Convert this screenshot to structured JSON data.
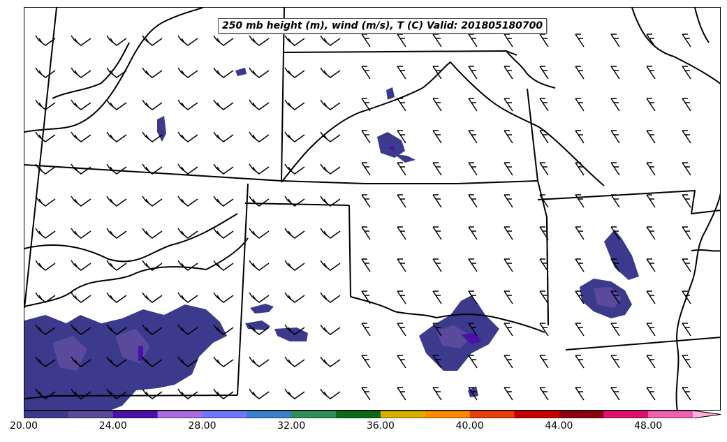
{
  "map": {
    "title": "250 mb height (m), wind (m/s), T (C) Valid: 201805180700"
  },
  "colorbar": {
    "colors": [
      "#3b3a8c",
      "#5a4a9c",
      "#4b10a8",
      "#a86be0",
      "#6e78ff",
      "#3a7fcc",
      "#2e8f5a",
      "#0d6a18",
      "#d8b000",
      "#ff8a00",
      "#e8400a",
      "#c40000",
      "#8c0010",
      "#e01070",
      "#f060b0",
      "#ffb0d8"
    ],
    "ticks": [
      "20.00",
      "24.00",
      "28.00",
      "32.00",
      "36.00",
      "40.00",
      "44.00",
      "48.00"
    ],
    "tick_values": [
      20,
      24,
      28,
      32,
      36,
      40,
      44,
      48
    ],
    "range": [
      20,
      52
    ]
  }
}
